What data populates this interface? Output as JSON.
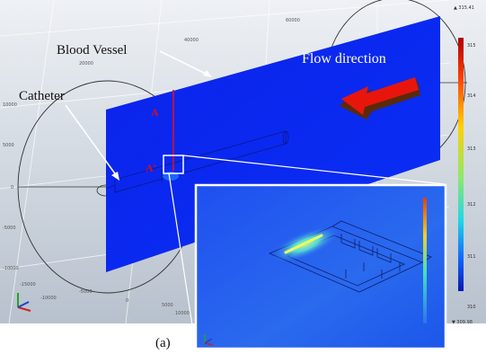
{
  "labels": {
    "blood_vessel": "Blood Vessel",
    "catheter": "Catheter",
    "flow_direction": "Flow direction",
    "section_a": "A",
    "section_a_prime": "A'",
    "caption": "(a)"
  },
  "colorbar": {
    "max_label": "▲ 315.41",
    "min_label": "▼ 309.98",
    "ticks": [
      "315",
      "314",
      "313",
      "312",
      "311",
      "310"
    ]
  },
  "axes": {
    "top_ticks": [
      "60000",
      "40000",
      "20000"
    ],
    "left_ticks": [
      "10000",
      "5000",
      "0",
      "-5000",
      "-10000"
    ],
    "bottom_ticks": [
      "-15000",
      "-10000",
      "-5000",
      "0",
      "5000",
      "10000"
    ]
  },
  "colors": {
    "vessel_plane": "#0a2bf0",
    "flow_arrow": "#e8150c",
    "section_line": "#e0101e",
    "background_top": "#dde3ea",
    "background_bottom": "#b9c3cf"
  }
}
